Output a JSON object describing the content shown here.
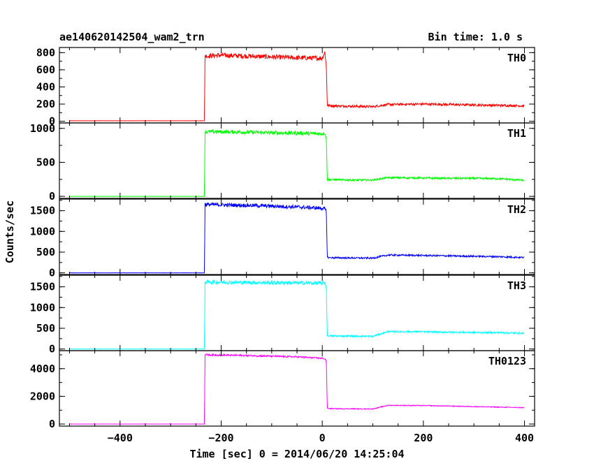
{
  "header": {
    "title": "ae140620142504_wam2_trn",
    "bin_time": "Bin time: 1.0 s"
  },
  "chart_data": {
    "type": "line",
    "title": "ae140620142504_wam2_trn",
    "xlabel": "Time [sec] 0 = 2014/06/20 14:25:04",
    "ylabel": "Counts/sec",
    "xlim": [
      -520,
      420
    ],
    "x_ticks": [
      -400,
      -200,
      0,
      200,
      400
    ],
    "x_tick_labels": [
      "−400",
      "−200",
      "0",
      "200",
      "400"
    ],
    "grid": false,
    "panels": [
      {
        "label": "TH0",
        "color": "#ff0000",
        "ylim": [
          -20,
          860
        ],
        "y_ticks": [
          0,
          200,
          400,
          600,
          800
        ],
        "y_tick_labels": [
          "0",
          "200",
          "400",
          "600",
          "800"
        ],
        "series": [
          {
            "x": [
              -500,
              -233,
              -232,
              -200,
              -150,
              -100,
              -50,
              0,
              5,
              8,
              10,
              20,
              60,
              100,
              130,
              200,
              250,
              300,
              350,
              400
            ],
            "values": [
              5,
              5,
              760,
              770,
              760,
              750,
              740,
              735,
              810,
              650,
              185,
              180,
              175,
              170,
              195,
              200,
              195,
              190,
              185,
              180
            ],
            "noise": [
              1,
              1,
              28,
              28,
              28,
              28,
              28,
              28,
              20,
              20,
              14,
              14,
              14,
              14,
              14,
              14,
              14,
              14,
              14,
              14
            ]
          }
        ]
      },
      {
        "label": "TH1",
        "color": "#00ff00",
        "ylim": [
          -30,
          1080
        ],
        "y_ticks": [
          0,
          500,
          1000
        ],
        "y_tick_labels": [
          "0",
          "500",
          "1000"
        ],
        "series": [
          {
            "x": [
              -500,
              -233,
              -232,
              -200,
              -150,
              -100,
              -50,
              0,
              5,
              8,
              10,
              20,
              60,
              100,
              130,
              200,
              250,
              300,
              350,
              400
            ],
            "values": [
              0,
              0,
              950,
              950,
              945,
              935,
              930,
              920,
              930,
              860,
              245,
              245,
              240,
              240,
              275,
              270,
              265,
              265,
              260,
              235
            ],
            "noise": [
              1,
              1,
              28,
              28,
              28,
              28,
              28,
              28,
              20,
              20,
              14,
              14,
              14,
              14,
              14,
              14,
              14,
              14,
              14,
              14
            ]
          }
        ]
      },
      {
        "label": "TH2",
        "color": "#0000ff",
        "ylim": [
          -40,
          1780
        ],
        "y_ticks": [
          0,
          500,
          1000,
          1500
        ],
        "y_tick_labels": [
          "0",
          "500",
          "1000",
          "1500"
        ],
        "series": [
          {
            "x": [
              -500,
              -233,
              -232,
              -200,
              -150,
              -100,
              -50,
              0,
              5,
              8,
              10,
              20,
              60,
              100,
              130,
              200,
              250,
              300,
              350,
              400
            ],
            "values": [
              0,
              0,
              1650,
              1640,
              1630,
              1610,
              1590,
              1560,
              1550,
              1480,
              370,
              365,
              360,
              355,
              430,
              420,
              410,
              400,
              390,
              370
            ],
            "noise": [
              2,
              2,
              45,
              45,
              45,
              45,
              45,
              45,
              30,
              30,
              20,
              20,
              20,
              20,
              20,
              20,
              20,
              20,
              20,
              20
            ]
          }
        ]
      },
      {
        "label": "TH3",
        "color": "#00ffff",
        "ylim": [
          -40,
          1780
        ],
        "y_ticks": [
          0,
          500,
          1000,
          1500
        ],
        "y_tick_labels": [
          "0",
          "500",
          "1000",
          "1500"
        ],
        "series": [
          {
            "x": [
              -500,
              -233,
              -232,
              -200,
              -150,
              -100,
              -50,
              0,
              5,
              8,
              10,
              20,
              60,
              100,
              130,
              200,
              250,
              300,
              350,
              400
            ],
            "values": [
              0,
              0,
              1620,
              1610,
              1605,
              1600,
              1595,
              1590,
              1600,
              1500,
              320,
              315,
              310,
              305,
              420,
              415,
              405,
              400,
              395,
              380
            ],
            "noise": [
              2,
              2,
              45,
              45,
              45,
              45,
              45,
              45,
              30,
              30,
              20,
              20,
              20,
              20,
              20,
              20,
              20,
              20,
              20,
              20
            ]
          }
        ]
      },
      {
        "label": "TH0123",
        "color": "#ff00ff",
        "ylim": [
          -150,
          5300
        ],
        "y_ticks": [
          0,
          2000,
          4000
        ],
        "y_tick_labels": [
          "0",
          "2000",
          "4000"
        ],
        "series": [
          {
            "x": [
              -500,
              -233,
              -232,
              -200,
              -150,
              -100,
              -50,
              0,
              5,
              8,
              10,
              20,
              60,
              100,
              130,
              200,
              250,
              300,
              350,
              400
            ],
            "values": [
              0,
              0,
              5000,
              4980,
              4950,
              4900,
              4850,
              4750,
              4700,
              4600,
              1120,
              1110,
              1100,
              1090,
              1350,
              1330,
              1300,
              1260,
              1220,
              1180
            ],
            "noise": [
              3,
              3,
              60,
              60,
              60,
              60,
              60,
              60,
              40,
              40,
              30,
              30,
              30,
              30,
              30,
              30,
              30,
              30,
              30,
              30
            ]
          }
        ]
      }
    ]
  }
}
